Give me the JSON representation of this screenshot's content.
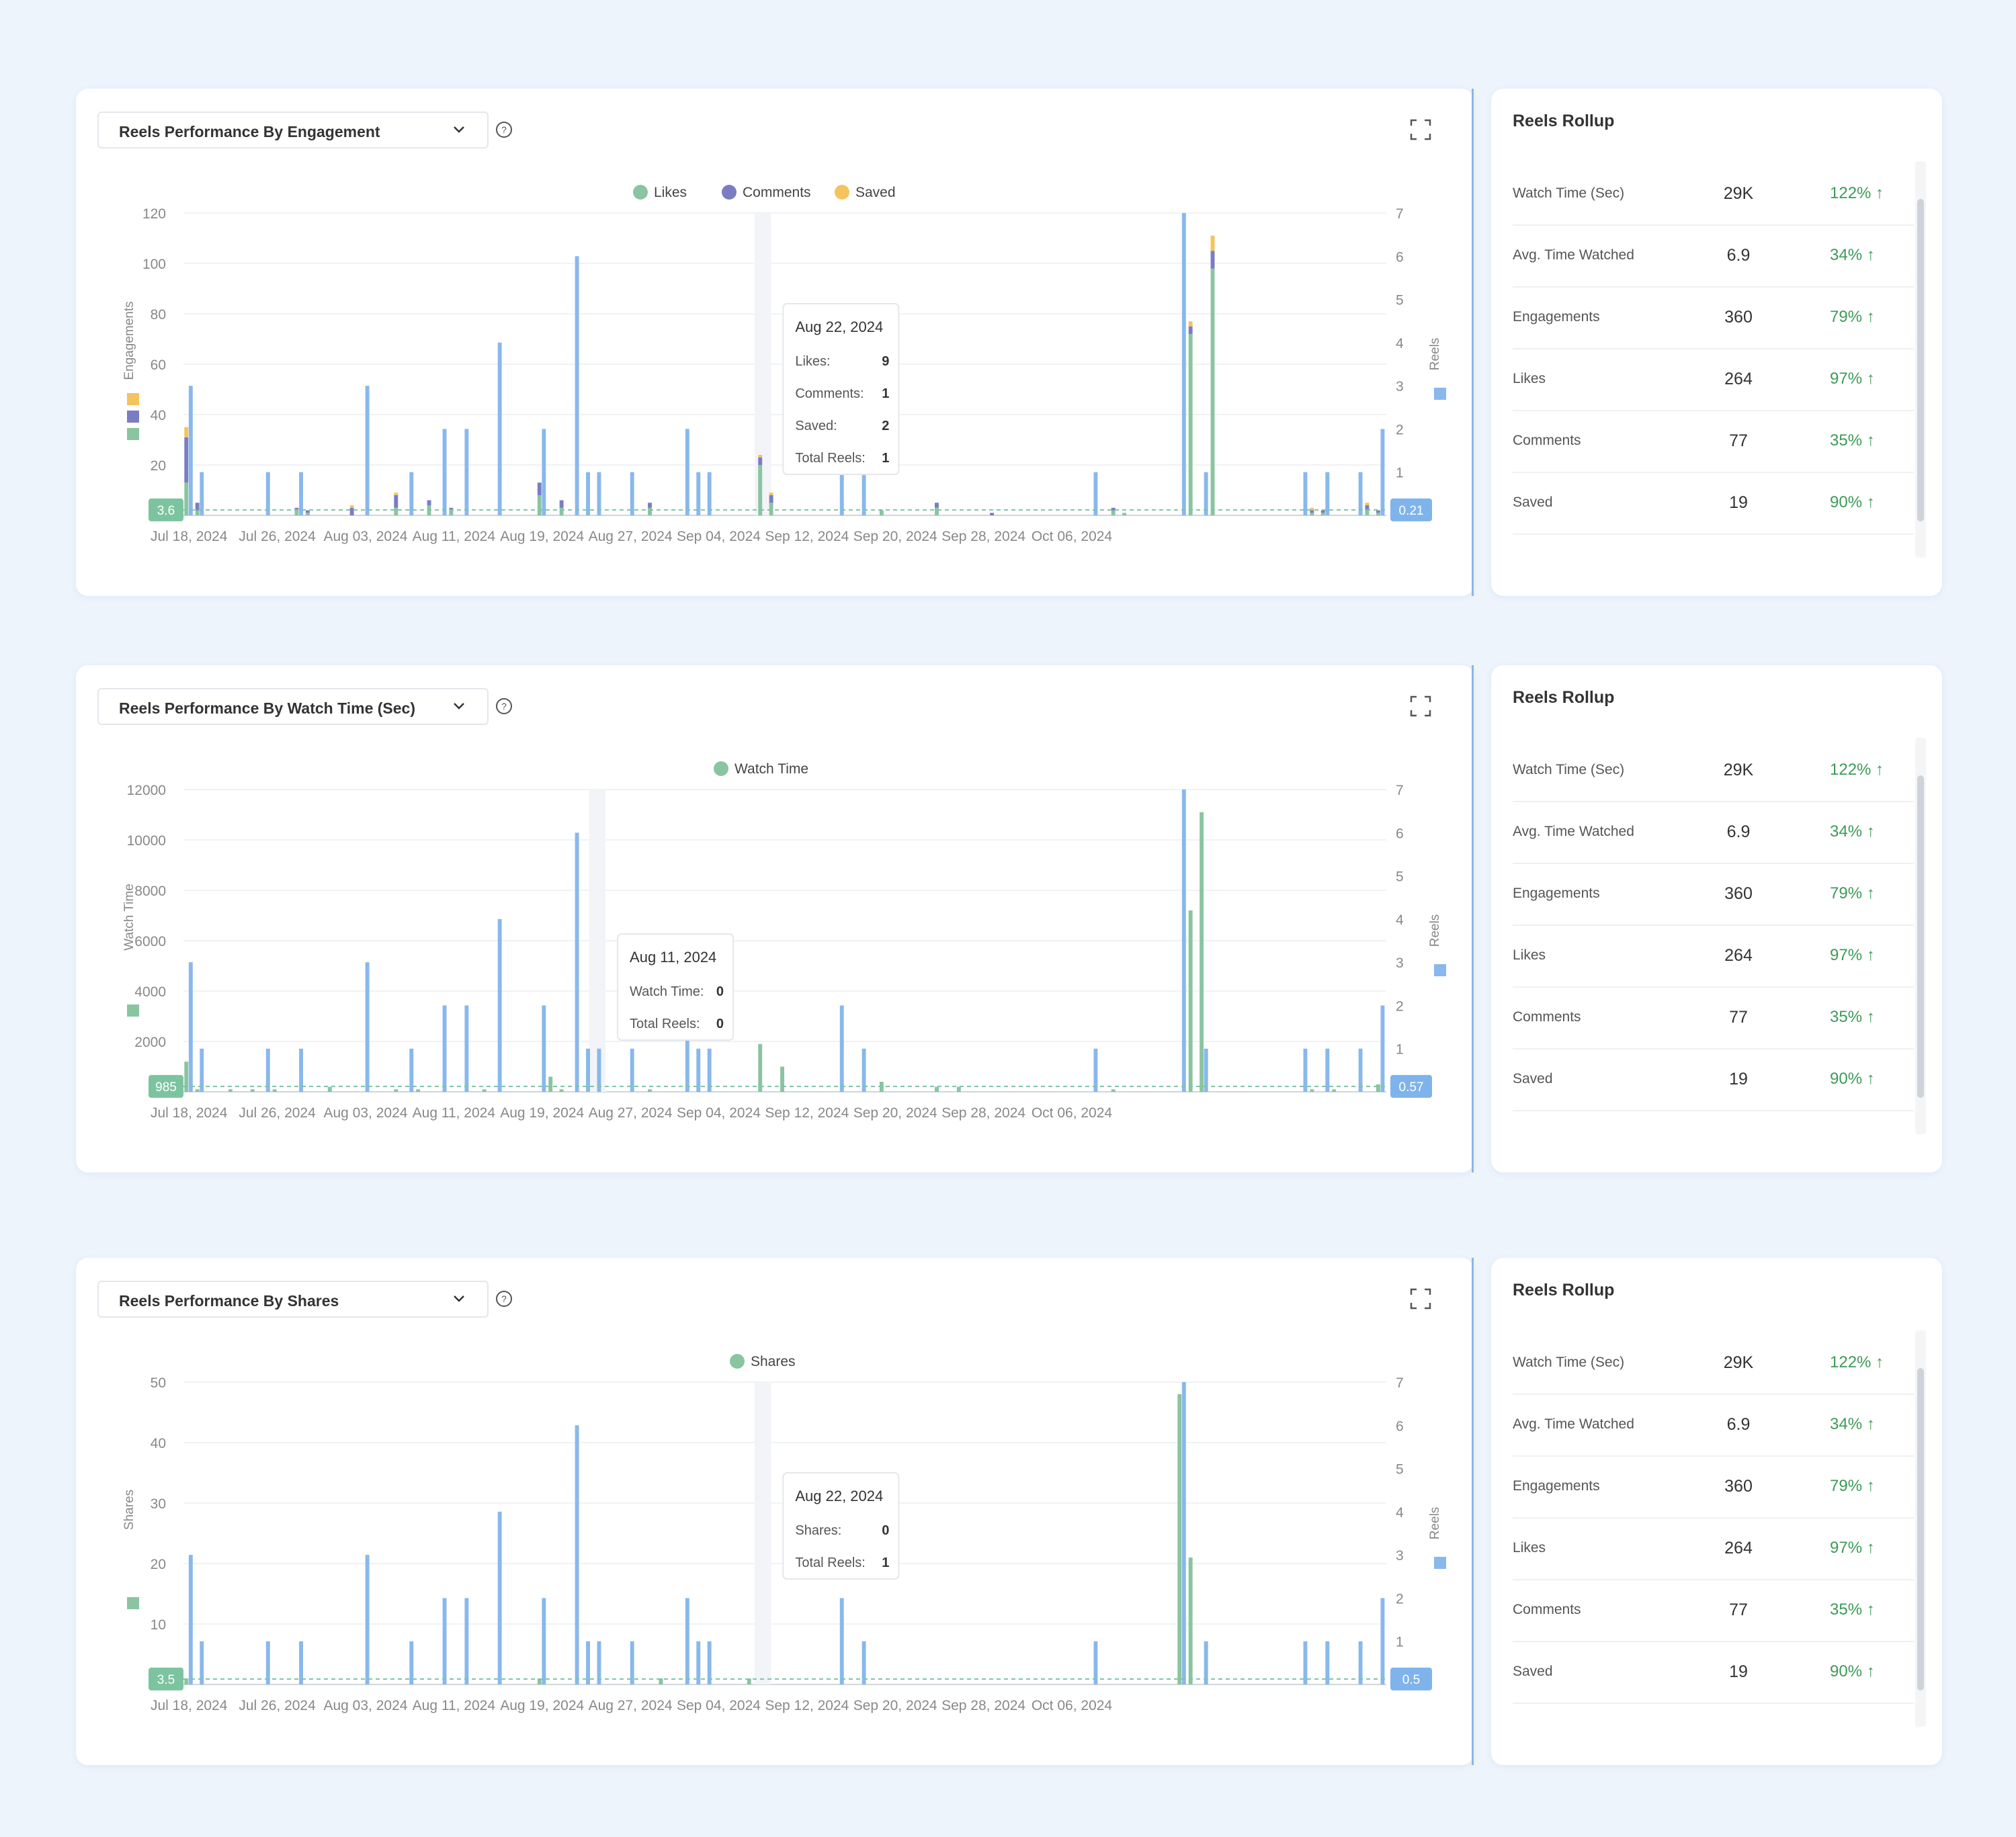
{
  "colors": {
    "likes": "#8ac4a0",
    "comments": "#7b7cc4",
    "saved": "#f5c35d",
    "reels": "#88b8ec",
    "axis": "#888888"
  },
  "dates": [
    "Jul 18, 2024",
    "Jul 26, 2024",
    "Aug 03, 2024",
    "Aug 11, 2024",
    "Aug 19, 2024",
    "Aug 27, 2024",
    "Sep 04, 2024",
    "Sep 12, 2024",
    "Sep 20, 2024",
    "Sep 28, 2024",
    "Oct 06, 2024"
  ],
  "reels_series": [
    3,
    1,
    0,
    0,
    0,
    0,
    0,
    1,
    0,
    0,
    1,
    0,
    0,
    0,
    0,
    0,
    3,
    0,
    0,
    0,
    1,
    0,
    0,
    2,
    0,
    2,
    0,
    0,
    4,
    0,
    0,
    0,
    2,
    0,
    0,
    6,
    1,
    1,
    0,
    0,
    1,
    0,
    0,
    0,
    0,
    2,
    1,
    1,
    0,
    0,
    0,
    0,
    0,
    0,
    0,
    0,
    0,
    0,
    0,
    2,
    0,
    1,
    0,
    0,
    0,
    0,
    0,
    0,
    0,
    0,
    0,
    0,
    0,
    0,
    0,
    0,
    0,
    0,
    0,
    0,
    0,
    0,
    1,
    0,
    0,
    0,
    0,
    0,
    0,
    0,
    7,
    0,
    1,
    0,
    0,
    0,
    0,
    0,
    0,
    0,
    0,
    1,
    0,
    1,
    0,
    0,
    1,
    0,
    2
  ],
  "rollup": {
    "title": "Reels Rollup",
    "rows": [
      {
        "label": "Watch Time (Sec)",
        "value": "29K",
        "pct": "122% ↑"
      },
      {
        "label": "Avg. Time Watched",
        "value": "6.9",
        "pct": "34% ↑"
      },
      {
        "label": "Engagements",
        "value": "360",
        "pct": "79% ↑"
      },
      {
        "label": "Likes",
        "value": "264",
        "pct": "97% ↑"
      },
      {
        "label": "Comments",
        "value": "77",
        "pct": "35% ↑"
      },
      {
        "label": "Saved",
        "value": "19",
        "pct": "90% ↑"
      }
    ]
  },
  "chart_data": [
    {
      "type": "bar",
      "dropdown": "Reels Performance By Engagement",
      "legend": [
        "Likes",
        "Comments",
        "Saved"
      ],
      "ylabel": "Engagements",
      "y2label": "Reels",
      "ylim": [
        0,
        120
      ],
      "yticks": [
        "0",
        "20",
        "40",
        "60",
        "80",
        "100",
        "120"
      ],
      "y2lim": [
        0,
        7
      ],
      "y2ticks": [
        "0",
        "1",
        "2",
        "3",
        "4",
        "5",
        "6",
        "7"
      ],
      "avg_left": "3.6",
      "avg_right": "0.21",
      "series": [
        {
          "name": "Likes",
          "values": {
            "0": 13,
            "1": 2,
            "10": 2,
            "11": 1,
            "19": 3,
            "22": 4,
            "24": 2,
            "32": 8,
            "34": 3,
            "42": 3,
            "52": 20,
            "53": 5,
            "63": 2,
            "68": 3,
            "84": 2,
            "85": 1,
            "91": 72,
            "93": 98,
            "102": 1,
            "103": 1,
            "107": 2,
            "108": 1,
            "109": 2
          }
        },
        {
          "name": "Comments",
          "values": {
            "0": 18,
            "1": 3,
            "10": 1,
            "11": 1,
            "15": 3,
            "19": 5,
            "22": 2,
            "24": 1,
            "32": 5,
            "34": 3,
            "42": 2,
            "52": 3,
            "53": 3,
            "68": 2,
            "73": 1,
            "84": 1,
            "91": 3,
            "93": 7,
            "102": 1,
            "103": 1,
            "107": 2,
            "108": 1,
            "109": 1
          }
        },
        {
          "name": "Saved",
          "values": {
            "0": 4,
            "15": 1,
            "19": 1,
            "52": 1,
            "53": 1,
            "91": 2,
            "93": 6,
            "102": 1,
            "107": 1
          }
        }
      ],
      "tooltip": {
        "date": "Aug 22, 2024",
        "rows": [
          {
            "label": "Likes:",
            "value": "9"
          },
          {
            "label": "Comments:",
            "value": "1"
          },
          {
            "label": "Saved:",
            "value": "2"
          },
          {
            "label": "Total Reels:",
            "value": "1"
          }
        ]
      }
    },
    {
      "type": "bar",
      "dropdown": "Reels Performance By Watch Time (Sec)",
      "legend": [
        "Watch Time"
      ],
      "ylabel": "Watch Time",
      "y2label": "Reels",
      "ylim": [
        0,
        12000
      ],
      "yticks": [
        "0",
        "2000",
        "4000",
        "6000",
        "8000",
        "10000",
        "12000"
      ],
      "y2lim": [
        0,
        7
      ],
      "y2ticks": [
        "0",
        "1",
        "2",
        "3",
        "4",
        "5",
        "6",
        "7"
      ],
      "avg_left": "985",
      "avg_right": "0.57",
      "series": [
        {
          "name": "Watch Time",
          "values": {
            "0": 1200,
            "1": 100,
            "4": 100,
            "6": 100,
            "8": 100,
            "13": 200,
            "19": 100,
            "21": 100,
            "27": 100,
            "33": 600,
            "34": 100,
            "42": 100,
            "52": 1900,
            "54": 1000,
            "63": 400,
            "68": 200,
            "70": 200,
            "84": 100,
            "91": 7200,
            "92": 11100,
            "102": 100,
            "104": 100,
            "108": 300,
            "109": 200
          }
        },
        {
          "name": "Reels",
          "values": {}
        }
      ],
      "tooltip": {
        "date": "Aug 11, 2024",
        "rows": [
          {
            "label": "Watch Time:",
            "value": "0"
          },
          {
            "label": "Total Reels:",
            "value": "0"
          }
        ]
      }
    },
    {
      "type": "bar",
      "dropdown": "Reels Performance By Shares",
      "legend": [
        "Shares"
      ],
      "ylabel": "Shares",
      "y2label": "Reels",
      "ylim": [
        0,
        50
      ],
      "yticks": [
        "0",
        "10",
        "20",
        "30",
        "40",
        "50"
      ],
      "y2lim": [
        0,
        7
      ],
      "y2ticks": [
        "0",
        "1",
        "2",
        "3",
        "4",
        "5",
        "6",
        "7"
      ],
      "avg_left": "3.5",
      "avg_right": "0.5",
      "series": [
        {
          "name": "Shares",
          "values": {
            "0": 1,
            "32": 1,
            "43": 1,
            "51": 1,
            "90": 48,
            "91": 21
          }
        },
        {
          "name": "Reels",
          "values": {}
        }
      ],
      "tooltip": {
        "date": "Aug 22, 2024",
        "rows": [
          {
            "label": "Shares:",
            "value": "0"
          },
          {
            "label": "Total Reels:",
            "value": "1"
          }
        ]
      }
    }
  ]
}
